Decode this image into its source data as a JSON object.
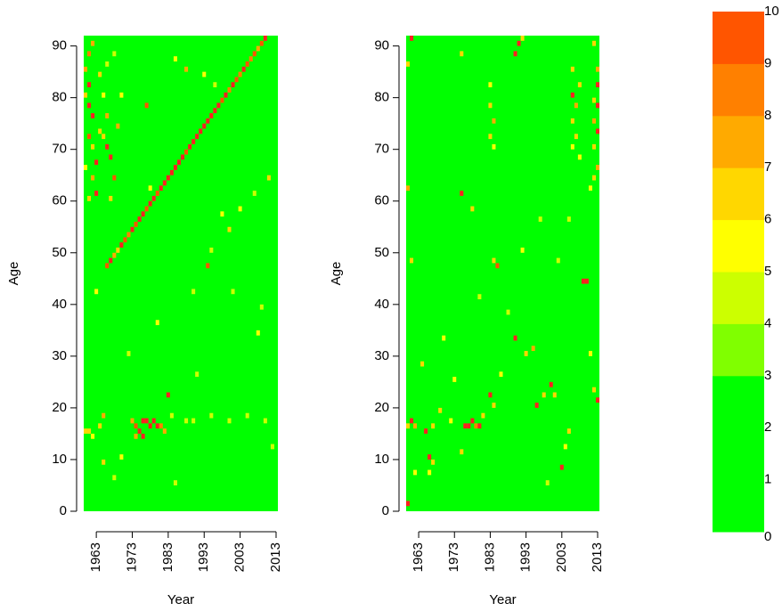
{
  "chart_data": [
    {
      "type": "heatmap",
      "xlabel": "Year",
      "ylabel": "Age",
      "xlim": [
        1959.5,
        2013.5
      ],
      "ylim": [
        0,
        92
      ],
      "xticks": [
        1963,
        1973,
        1983,
        1993,
        2003,
        2013
      ],
      "yticks": [
        0,
        10,
        20,
        30,
        40,
        50,
        60,
        70,
        80,
        90
      ],
      "colorbar": {
        "ticks": [
          0,
          1,
          2,
          3,
          4,
          5,
          6,
          7,
          8,
          9,
          10
        ],
        "colors": [
          "#00ff00",
          "#00ff00",
          "#00ff00",
          "#80ff00",
          "#ccff00",
          "#ffff00",
          "#ffd700",
          "#ffaa00",
          "#ff8000",
          "#ff5500"
        ],
        "over_color": "#ff2020"
      },
      "cells": [
        [
          1966,
          47,
          9
        ],
        [
          1967,
          48,
          11
        ],
        [
          1968,
          49,
          7
        ],
        [
          1969,
          50,
          6
        ],
        [
          1970,
          51,
          11
        ],
        [
          1971,
          52,
          9
        ],
        [
          1972,
          53,
          8
        ],
        [
          1973,
          54,
          11
        ],
        [
          1974,
          55,
          9
        ],
        [
          1975,
          56,
          11
        ],
        [
          1976,
          57,
          11
        ],
        [
          1977,
          58,
          9
        ],
        [
          1978,
          59,
          11
        ],
        [
          1979,
          60,
          11
        ],
        [
          1980,
          61,
          9
        ],
        [
          1981,
          62,
          11
        ],
        [
          1982,
          63,
          11
        ],
        [
          1983,
          64,
          11
        ],
        [
          1984,
          65,
          11
        ],
        [
          1985,
          66,
          11
        ],
        [
          1986,
          67,
          11
        ],
        [
          1987,
          68,
          11
        ],
        [
          1988,
          69,
          9
        ],
        [
          1989,
          70,
          11
        ],
        [
          1990,
          71,
          11
        ],
        [
          1991,
          72,
          11
        ],
        [
          1992,
          73,
          11
        ],
        [
          1993,
          74,
          11
        ],
        [
          1994,
          75,
          11
        ],
        [
          1995,
          76,
          11
        ],
        [
          1996,
          77,
          11
        ],
        [
          1997,
          78,
          11
        ],
        [
          1998,
          79,
          9
        ],
        [
          1999,
          80,
          11
        ],
        [
          2000,
          81,
          8
        ],
        [
          2001,
          82,
          11
        ],
        [
          2002,
          83,
          9
        ],
        [
          2003,
          84,
          8
        ],
        [
          2004,
          85,
          11
        ],
        [
          2005,
          86,
          9
        ],
        [
          2006,
          87,
          8
        ],
        [
          2007,
          88,
          9
        ],
        [
          2008,
          89,
          7
        ],
        [
          2009,
          90,
          9
        ],
        [
          2010,
          91,
          11
        ],
        [
          2011,
          92,
          9
        ],
        [
          1960,
          85,
          7
        ],
        [
          1960,
          80,
          6
        ],
        [
          1961,
          88,
          8
        ],
        [
          1961,
          82,
          11
        ],
        [
          1961,
          78,
          11
        ],
        [
          1962,
          76,
          11
        ],
        [
          1961,
          72,
          9
        ],
        [
          1962,
          70,
          6
        ],
        [
          1960,
          66,
          5
        ],
        [
          1962,
          64,
          7
        ],
        [
          1963,
          61,
          11
        ],
        [
          1961,
          60,
          6
        ],
        [
          1962,
          90,
          7
        ],
        [
          1964,
          84,
          6
        ],
        [
          1965,
          80,
          5
        ],
        [
          1966,
          76,
          7
        ],
        [
          1965,
          72,
          6
        ],
        [
          1966,
          70,
          11
        ],
        [
          1967,
          68,
          11
        ],
        [
          1968,
          64,
          9
        ],
        [
          1967,
          60,
          6
        ],
        [
          1969,
          74,
          7
        ],
        [
          1970,
          80,
          5
        ],
        [
          1963,
          67,
          11
        ],
        [
          1964,
          73,
          6
        ],
        [
          1966,
          86,
          4
        ],
        [
          1968,
          88,
          4
        ],
        [
          1960,
          92,
          6
        ],
        [
          1990,
          42,
          4
        ],
        [
          1995,
          50,
          4
        ],
        [
          2000,
          54,
          6
        ],
        [
          2003,
          58,
          5
        ],
        [
          2007,
          61,
          4
        ],
        [
          2011,
          64,
          6
        ],
        [
          1960,
          15,
          6
        ],
        [
          1961,
          15,
          6
        ],
        [
          1962,
          14,
          5
        ],
        [
          1964,
          16,
          6
        ],
        [
          1965,
          18,
          7
        ],
        [
          1973,
          17,
          7
        ],
        [
          1974,
          16,
          9
        ],
        [
          1975,
          15,
          11
        ],
        [
          1976,
          17,
          11
        ],
        [
          1977,
          17,
          11
        ],
        [
          1978,
          16,
          11
        ],
        [
          1979,
          17,
          11
        ],
        [
          1980,
          16,
          11
        ],
        [
          1981,
          16,
          8
        ],
        [
          1982,
          15,
          7
        ],
        [
          1974,
          14,
          7
        ],
        [
          1976,
          14,
          11
        ],
        [
          1983,
          22,
          11
        ],
        [
          1984,
          18,
          4
        ],
        [
          1990,
          17,
          4
        ],
        [
          1995,
          18,
          4
        ],
        [
          2000,
          17,
          4
        ],
        [
          2005,
          18,
          4
        ],
        [
          2010,
          17,
          4
        ],
        [
          1988,
          17,
          4
        ],
        [
          1965,
          9,
          6
        ],
        [
          1970,
          10,
          5
        ],
        [
          1968,
          6,
          4
        ],
        [
          1985,
          5,
          4
        ],
        [
          1972,
          30,
          4
        ],
        [
          1980,
          36,
          5
        ],
        [
          1994,
          47,
          9
        ],
        [
          1998,
          57,
          5
        ],
        [
          2001,
          42,
          4
        ],
        [
          2008,
          34,
          5
        ],
        [
          1991,
          26,
          4
        ],
        [
          1977,
          78,
          9
        ],
        [
          1985,
          87,
          5
        ],
        [
          1988,
          85,
          7
        ],
        [
          1993,
          84,
          5
        ],
        [
          1996,
          82,
          4
        ],
        [
          1978,
          62,
          5
        ],
        [
          2012,
          12,
          4
        ],
        [
          1963,
          42,
          5
        ],
        [
          2009,
          39,
          4
        ]
      ]
    },
    {
      "type": "heatmap",
      "xlabel": "Year",
      "ylabel": "Age",
      "xlim": [
        1959.5,
        2013.5
      ],
      "ylim": [
        0,
        92
      ],
      "xticks": [
        1963,
        1973,
        1983,
        1993,
        2003,
        2013
      ],
      "yticks": [
        0,
        10,
        20,
        30,
        40,
        50,
        60,
        70,
        80,
        90
      ],
      "cells": [
        [
          1961,
          91,
          11
        ],
        [
          1960,
          86,
          6
        ],
        [
          1960,
          62,
          7
        ],
        [
          1961,
          48,
          6
        ],
        [
          1983,
          82,
          5
        ],
        [
          1983,
          78,
          6
        ],
        [
          1984,
          75,
          7
        ],
        [
          1983,
          72,
          6
        ],
        [
          1984,
          70,
          5
        ],
        [
          1991,
          90,
          11
        ],
        [
          1990,
          88,
          11
        ],
        [
          1992,
          91,
          6
        ],
        [
          1975,
          88,
          6
        ],
        [
          2006,
          85,
          6
        ],
        [
          2006,
          80,
          11
        ],
        [
          2007,
          78,
          7
        ],
        [
          2006,
          75,
          6
        ],
        [
          2007,
          72,
          6
        ],
        [
          2006,
          70,
          5
        ],
        [
          2008,
          82,
          6
        ],
        [
          2008,
          68,
          5
        ],
        [
          2012,
          90,
          6
        ],
        [
          2013,
          85,
          7
        ],
        [
          2013,
          82,
          11
        ],
        [
          2012,
          79,
          6
        ],
        [
          2013,
          78,
          11
        ],
        [
          2012,
          75,
          7
        ],
        [
          2013,
          73,
          11
        ],
        [
          2012,
          70,
          6
        ],
        [
          2013,
          66,
          7
        ],
        [
          2012,
          64,
          6
        ],
        [
          2011,
          62,
          5
        ],
        [
          2009,
          44,
          11
        ],
        [
          2005,
          56,
          4
        ],
        [
          1960,
          16,
          6
        ],
        [
          1961,
          17,
          11
        ],
        [
          1962,
          16,
          7
        ],
        [
          1965,
          15,
          11
        ],
        [
          1967,
          16,
          6
        ],
        [
          1969,
          19,
          6
        ],
        [
          1972,
          17,
          5
        ],
        [
          1976,
          16,
          11
        ],
        [
          1977,
          16,
          11
        ],
        [
          1978,
          17,
          11
        ],
        [
          1979,
          16,
          8
        ],
        [
          1980,
          16,
          11
        ],
        [
          1981,
          18,
          6
        ],
        [
          1983,
          22,
          11
        ],
        [
          1984,
          20,
          6
        ],
        [
          1966,
          10,
          11
        ],
        [
          1967,
          9,
          6
        ],
        [
          1962,
          7,
          5
        ],
        [
          1960,
          1,
          11
        ],
        [
          1966,
          7,
          5
        ],
        [
          1975,
          11,
          6
        ],
        [
          1984,
          48,
          6
        ],
        [
          1985,
          47,
          9
        ],
        [
          1978,
          58,
          6
        ],
        [
          1975,
          61,
          11
        ],
        [
          1990,
          33,
          11
        ],
        [
          1993,
          30,
          6
        ],
        [
          1995,
          31,
          7
        ],
        [
          1996,
          20,
          11
        ],
        [
          1998,
          22,
          6
        ],
        [
          2000,
          24,
          11
        ],
        [
          2001,
          22,
          6
        ],
        [
          2003,
          8,
          11
        ],
        [
          2005,
          15,
          6
        ],
        [
          2010,
          44,
          11
        ],
        [
          2012,
          23,
          6
        ],
        [
          2013,
          21,
          11
        ],
        [
          2011,
          30,
          5
        ],
        [
          1988,
          38,
          4
        ],
        [
          1986,
          26,
          5
        ],
        [
          1970,
          33,
          5
        ],
        [
          1980,
          41,
          4
        ],
        [
          1992,
          50,
          5
        ],
        [
          1997,
          56,
          4
        ],
        [
          2002,
          48,
          4
        ],
        [
          1973,
          25,
          5
        ],
        [
          1964,
          28,
          6
        ],
        [
          2004,
          12,
          5
        ],
        [
          1999,
          5,
          4
        ]
      ]
    }
  ]
}
